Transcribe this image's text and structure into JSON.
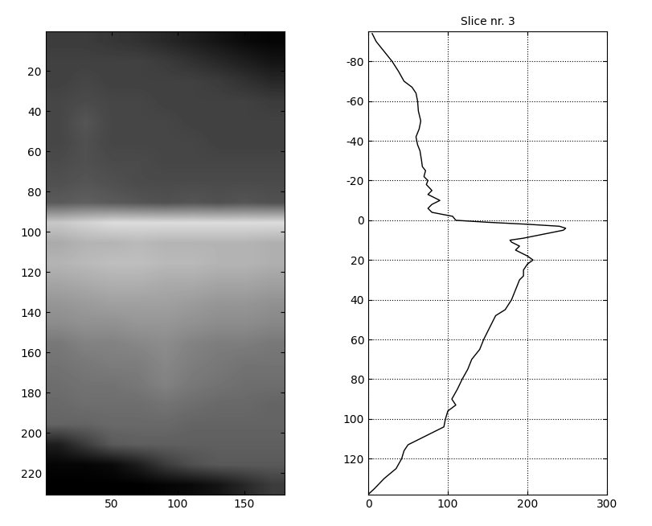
{
  "chart_data": [
    {
      "type": "image",
      "cells": [
        [
          60,
          60,
          55,
          50,
          40,
          30,
          20,
          10,
          5
        ],
        [
          65,
          65,
          65,
          65,
          60,
          50,
          40,
          30,
          20
        ],
        [
          65,
          70,
          65,
          65,
          65,
          65,
          60,
          50,
          40
        ],
        [
          70,
          75,
          70,
          70,
          65,
          65,
          65,
          65,
          60
        ],
        [
          70,
          85,
          70,
          70,
          70,
          65,
          65,
          65,
          65
        ],
        [
          70,
          80,
          70,
          70,
          70,
          70,
          65,
          65,
          65
        ],
        [
          75,
          80,
          75,
          75,
          70,
          70,
          70,
          70,
          70
        ],
        [
          80,
          85,
          80,
          75,
          75,
          75,
          75,
          75,
          75
        ],
        [
          90,
          95,
          90,
          85,
          80,
          85,
          80,
          85,
          80
        ],
        [
          200,
          210,
          220,
          220,
          220,
          220,
          220,
          220,
          220
        ],
        [
          170,
          180,
          180,
          185,
          180,
          180,
          180,
          180,
          175
        ],
        [
          180,
          185,
          190,
          190,
          185,
          185,
          180,
          180,
          175
        ],
        [
          165,
          170,
          175,
          175,
          170,
          170,
          165,
          165,
          160
        ],
        [
          150,
          155,
          160,
          160,
          160,
          155,
          150,
          150,
          145
        ],
        [
          140,
          145,
          145,
          150,
          150,
          145,
          140,
          140,
          135
        ],
        [
          120,
          130,
          130,
          135,
          140,
          130,
          125,
          125,
          120
        ],
        [
          115,
          120,
          125,
          125,
          135,
          125,
          120,
          115,
          115
        ],
        [
          110,
          115,
          115,
          120,
          130,
          120,
          115,
          110,
          110
        ],
        [
          105,
          110,
          110,
          110,
          115,
          110,
          105,
          105,
          100
        ],
        [
          100,
          100,
          105,
          105,
          105,
          100,
          100,
          100,
          100
        ],
        [
          30,
          60,
          90,
          95,
          95,
          95,
          95,
          95,
          95
        ],
        [
          5,
          5,
          10,
          30,
          60,
          80,
          90,
          90,
          90
        ],
        [
          0,
          0,
          0,
          0,
          5,
          10,
          20,
          40,
          60
        ]
      ],
      "color_range": [
        0,
        255
      ],
      "xlim": [
        0.5,
        180.5
      ],
      "ylim": [
        230.5,
        0.5
      ],
      "xticks": [
        50,
        100,
        150
      ],
      "yticks": [
        20,
        40,
        60,
        80,
        100,
        120,
        140,
        160,
        180,
        200,
        220
      ]
    },
    {
      "type": "line",
      "title": "Slice nr. 3",
      "color": "#000000",
      "grid": true,
      "x": [
        5,
        10,
        20,
        30,
        38,
        45,
        55,
        60,
        62,
        63,
        66,
        64,
        60,
        62,
        65,
        67,
        68,
        72,
        70,
        75,
        73,
        80,
        75,
        90,
        80,
        75,
        80,
        106,
        110,
        150,
        200,
        240,
        248,
        245,
        220,
        195,
        178,
        180,
        190,
        185,
        200,
        207,
        200,
        195,
        195,
        190,
        185,
        180,
        172,
        160,
        155,
        150,
        145,
        140,
        130,
        125,
        118,
        112,
        105,
        110,
        100,
        97,
        95,
        85,
        75,
        65,
        50,
        45,
        42,
        35,
        20,
        8,
        0
      ],
      "y": [
        -94,
        -90,
        -85,
        -80,
        -75,
        -70,
        -67,
        -64,
        -60,
        -55,
        -50,
        -46,
        -42,
        -38,
        -35,
        -30,
        -27,
        -25,
        -22,
        -20,
        -18,
        -15,
        -13,
        -10,
        -8,
        -6,
        -4,
        -2,
        0,
        1,
        2,
        3,
        4,
        5,
        7,
        9,
        10,
        11,
        13,
        15,
        18,
        20,
        22,
        25,
        28,
        30,
        35,
        40,
        45,
        48,
        52,
        56,
        60,
        65,
        70,
        75,
        80,
        85,
        90,
        93,
        96,
        100,
        104,
        106,
        108,
        110,
        113,
        116,
        120,
        125,
        130,
        135,
        138
      ],
      "xlim": [
        0,
        300
      ],
      "ylim": [
        138,
        -95
      ],
      "xticks": [
        0,
        100,
        200,
        300
      ],
      "yticks": [
        -80,
        -60,
        -40,
        -20,
        0,
        20,
        40,
        60,
        80,
        100,
        120
      ]
    }
  ]
}
